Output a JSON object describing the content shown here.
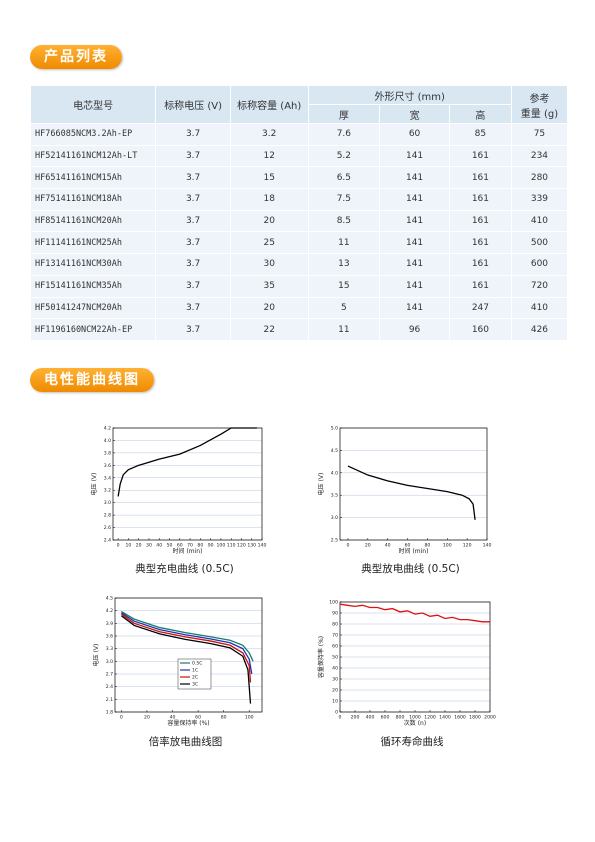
{
  "sections": [
    "产品列表",
    "电性能曲线图"
  ],
  "table": {
    "header": {
      "model": "电芯型号",
      "voltage": "标称电压 (V)",
      "capacity": "标称容量 (Ah)",
      "size": "外形尺寸 (mm)",
      "thick": "厚",
      "width": "宽",
      "height": "高",
      "weight": [
        "参考",
        "重量 (g)"
      ]
    },
    "rows": [
      [
        "HF766085NCM3.2Ah-EP",
        3.7,
        3.2,
        7.6,
        60,
        85,
        75
      ],
      [
        "HF52141161NCM12Ah-LT",
        3.7,
        12,
        5.2,
        141,
        161,
        234
      ],
      [
        "HF65141161NCM15Ah",
        3.7,
        15,
        6.5,
        141,
        161,
        280
      ],
      [
        "HF75141161NCM18Ah",
        3.7,
        18,
        7.5,
        141,
        161,
        339
      ],
      [
        "HF85141161NCM20Ah",
        3.7,
        20,
        8.5,
        141,
        161,
        410
      ],
      [
        "HF11141161NCM25Ah",
        3.7,
        25,
        11,
        141,
        161,
        500
      ],
      [
        "HF13141161NCM30Ah",
        3.7,
        30,
        13,
        141,
        161,
        600
      ],
      [
        "HF15141161NCM35Ah",
        3.7,
        35,
        15,
        141,
        161,
        720
      ],
      [
        "HF50141247NCM20Ah",
        3.7,
        20,
        5,
        141,
        247,
        410
      ],
      [
        "HF1196160NCM22Ah-EP",
        3.7,
        22,
        11,
        96,
        160,
        426
      ]
    ]
  },
  "chart_data": [
    {
      "type": "line",
      "caption": "典型充电曲线 (0.5C)",
      "xlabel": "时间 (min)",
      "ylabel": "电压 (V)",
      "color": "#000000",
      "x": [
        0,
        2,
        5,
        10,
        20,
        40,
        60,
        80,
        100,
        110,
        120,
        135
      ],
      "values": [
        3.1,
        3.3,
        3.45,
        3.53,
        3.6,
        3.7,
        3.78,
        3.92,
        4.1,
        4.2,
        4.2,
        4.2
      ],
      "xlim": [
        -5,
        140
      ],
      "ylim": [
        2.4,
        4.2
      ],
      "xticks": [
        0,
        10,
        20,
        30,
        40,
        50,
        60,
        70,
        80,
        90,
        100,
        110,
        120,
        130,
        140
      ],
      "yticks": [
        2.4,
        2.6,
        2.8,
        {
          "value": 3,
          "label": "3.0"
        },
        3.2,
        3.4,
        3.6,
        3.8,
        {
          "value": 4,
          "label": "4.0"
        },
        4.2
      ],
      "grid": true
    },
    {
      "type": "line",
      "caption": "典型放电曲线 (0.5C)",
      "xlabel": "时间 (min)",
      "ylabel": "电压 (V)",
      "color": "#000000",
      "x": [
        0,
        20,
        40,
        60,
        80,
        100,
        115,
        122,
        126,
        128
      ],
      "values": [
        4.15,
        3.95,
        3.82,
        3.72,
        3.65,
        3.58,
        3.5,
        3.42,
        3.3,
        2.95
      ],
      "xlim": [
        -8,
        140
      ],
      "ylim": [
        2.5,
        5
      ],
      "xticks": [
        0,
        20,
        40,
        60,
        80,
        100,
        120,
        140
      ],
      "yticks": [
        2.5,
        {
          "value": 3,
          "label": "3.0"
        },
        3.5,
        {
          "value": 4,
          "label": "4.0"
        },
        4.5,
        {
          "value": 5,
          "label": "5.0"
        }
      ],
      "grid": true
    },
    {
      "type": "line",
      "caption": "倍率放电曲线图",
      "xlabel": "容量保持率 (%)",
      "ylabel": "电压 (V)",
      "series": [
        {
          "name": "0.5C",
          "color": "#1a7a6e",
          "x": [
            0,
            10,
            30,
            50,
            70,
            85,
            95,
            100,
            103
          ],
          "values": [
            4.18,
            4.0,
            3.8,
            3.68,
            3.58,
            3.5,
            3.38,
            3.2,
            3.0
          ]
        },
        {
          "name": "1C",
          "color": "#2233aa",
          "x": [
            0,
            10,
            30,
            50,
            70,
            85,
            95,
            100,
            102
          ],
          "values": [
            4.15,
            3.95,
            3.75,
            3.63,
            3.53,
            3.44,
            3.3,
            3.05,
            2.7
          ]
        },
        {
          "name": "2C",
          "color": "#cc1111",
          "x": [
            0,
            10,
            30,
            50,
            70,
            85,
            95,
            100,
            101
          ],
          "values": [
            4.12,
            3.9,
            3.7,
            3.58,
            3.48,
            3.38,
            3.2,
            2.9,
            2.5
          ]
        },
        {
          "name": "3C",
          "color": "#000000",
          "x": [
            0,
            10,
            30,
            50,
            70,
            85,
            95,
            99,
            101
          ],
          "values": [
            4.08,
            3.85,
            3.65,
            3.52,
            3.42,
            3.32,
            3.12,
            2.8,
            2.0
          ]
        }
      ],
      "xlim": [
        -5,
        110
      ],
      "ylim": [
        1.8,
        4.5
      ],
      "xticks": [
        0,
        20,
        40,
        60,
        80,
        100
      ],
      "yticks": [
        1.8,
        2.1,
        2.4,
        2.7,
        {
          "value": 3,
          "label": "3.0"
        },
        3.3,
        3.6,
        3.9,
        4.2,
        4.5
      ],
      "grid": true
    },
    {
      "type": "line",
      "caption": "循环寿命曲线",
      "xlabel": "次数 (n)",
      "ylabel": "容量保持率 (%)",
      "color": "#dd1111",
      "x": [
        0,
        100,
        200,
        300,
        400,
        500,
        600,
        700,
        800,
        900,
        1000,
        1100,
        1200,
        1300,
        1400,
        1500,
        1600,
        1700,
        1800,
        1900,
        2000
      ],
      "values": [
        98,
        97,
        96,
        97,
        95,
        95,
        93,
        94,
        91,
        92,
        89,
        90,
        87,
        88,
        85,
        86,
        84,
        84,
        83,
        82,
        82
      ],
      "xlim": [
        0,
        2000
      ],
      "ylim": [
        0,
        100
      ],
      "xticks": [
        0,
        200,
        400,
        600,
        800,
        1000,
        1200,
        1400,
        1600,
        1800,
        2000
      ],
      "yticks": [
        0,
        10,
        20,
        30,
        40,
        50,
        60,
        70,
        80,
        90,
        100
      ],
      "grid": true
    }
  ]
}
